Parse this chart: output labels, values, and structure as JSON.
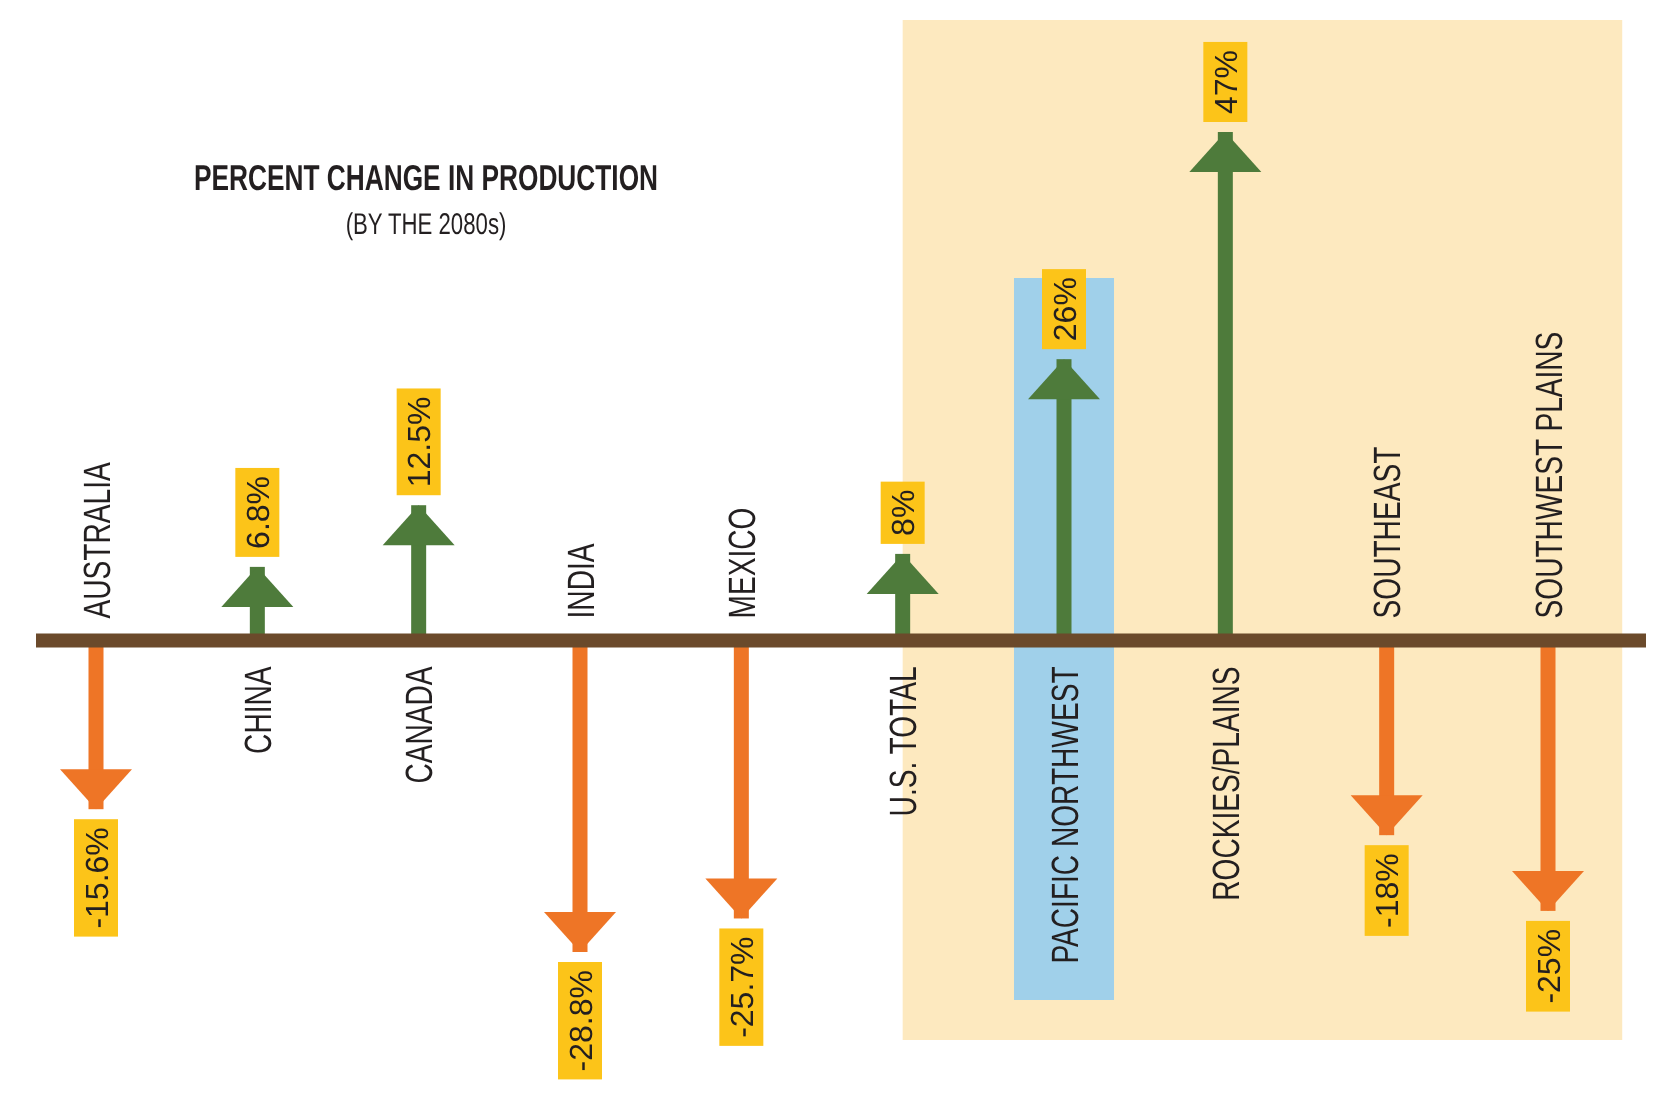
{
  "chart_data": {
    "type": "bar",
    "title": "PERCENT CHANGE IN PRODUCTION",
    "subtitle": "(BY THE 2080s)",
    "categories": [
      "AUSTRALIA",
      "CHINA",
      "CANADA",
      "INDIA",
      "MEXICO",
      "U.S. TOTAL",
      "PACIFIC NORTHWEST",
      "ROCKIES/PLAINS",
      "SOUTHEAST",
      "SOUTHWEST PLAINS"
    ],
    "values": [
      -15.6,
      6.8,
      12.5,
      -28.8,
      -25.7,
      8,
      26,
      47,
      -18,
      -25
    ],
    "colors": [
      "#ee7526",
      "#4e7b3b",
      "#4e7b3b",
      "#ee7526",
      "#ee7526",
      "#4e7b3b",
      "#4e7b3b",
      "#4e7b3b",
      "#ee7526",
      "#ee7526"
    ],
    "value_labels": [
      "-15.6%",
      "6.8%",
      "12.5%",
      "-28.8%",
      "-25.7%",
      "8%",
      "26%",
      "47%",
      "-18%",
      "-25%"
    ],
    "bands": [
      {
        "axis": "x",
        "from": "U.S. TOTAL",
        "to": "SOUTHWEST PLAINS",
        "color": "#fde9bf"
      },
      {
        "axis": "x",
        "from": "PACIFIC NORTHWEST",
        "to": "PACIFIC NORTHWEST",
        "color": "#a0d0ea"
      }
    ]
  }
}
